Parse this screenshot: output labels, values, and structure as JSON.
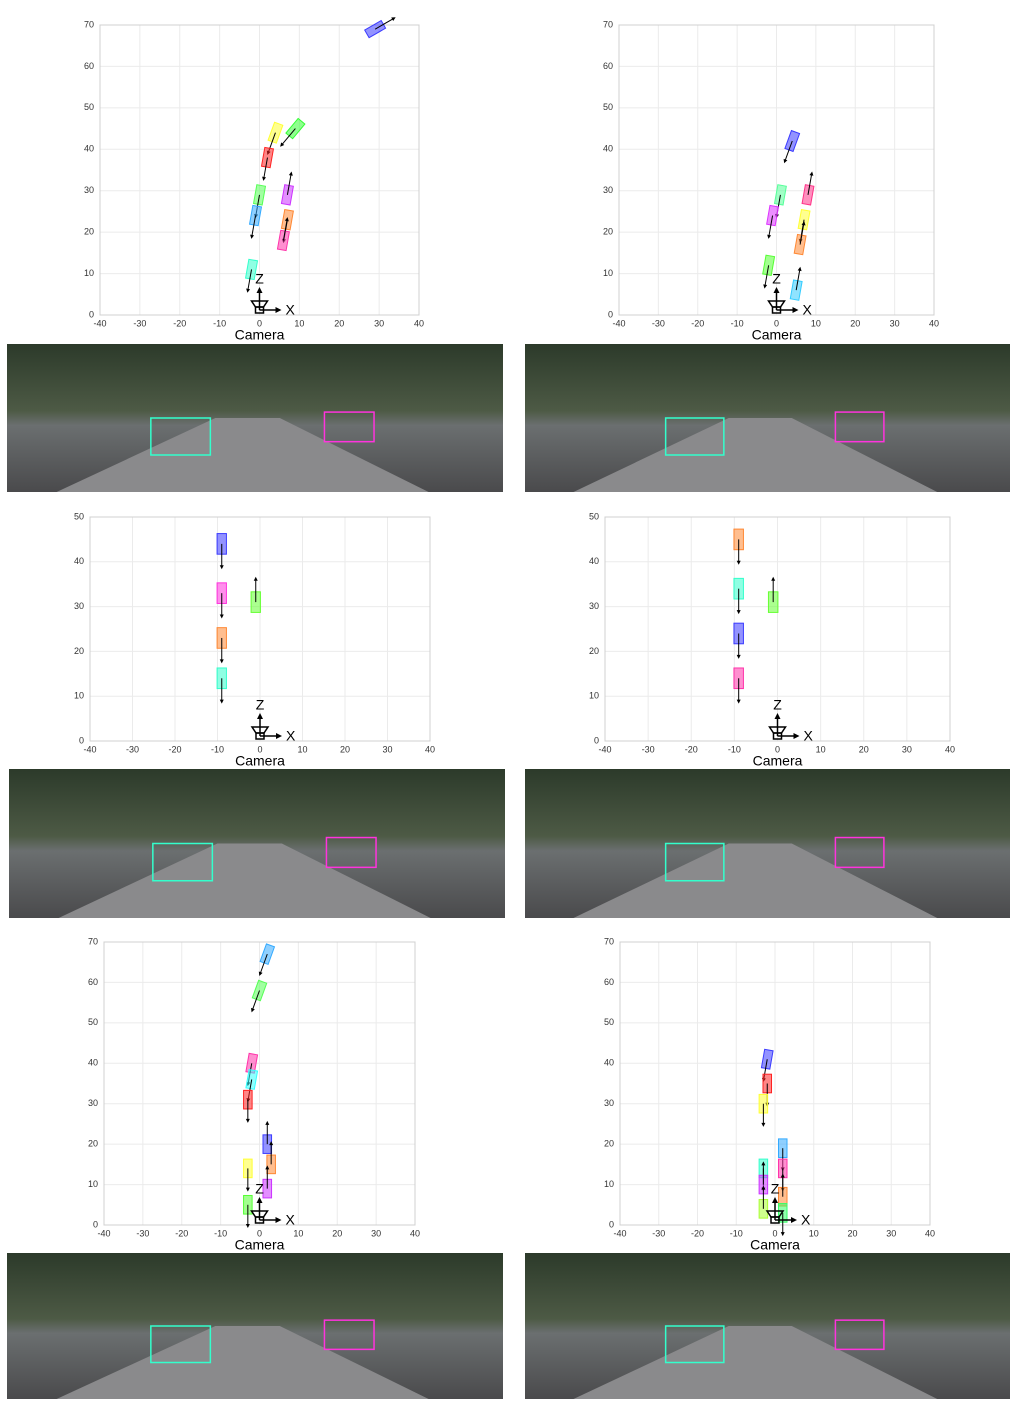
{
  "chart_data": [
    {
      "type": "bev",
      "xlim": [
        -40,
        40
      ],
      "ylim": [
        0,
        70
      ],
      "xticks": [
        -40,
        -30,
        -20,
        -10,
        0,
        10,
        20,
        30,
        40
      ],
      "yticks": [
        0,
        10,
        20,
        30,
        40,
        50,
        60,
        70
      ],
      "grid": true,
      "z_label": "Z",
      "x_label": "X",
      "camera_label": "Camera",
      "x": [
        29,
        4,
        9,
        2,
        0,
        -1,
        7,
        7,
        6,
        -2
      ],
      "values": [
        69,
        44,
        45,
        38,
        29,
        24,
        29,
        23,
        18,
        11
      ],
      "headings": [
        60,
        200,
        220,
        190,
        190,
        190,
        10,
        190,
        10,
        190
      ],
      "colors": [
        "#3b3bff",
        "#ffff33",
        "#33ff33",
        "#ff2222",
        "#55ff55",
        "#33aaff",
        "#cc33ff",
        "#ff8833",
        "#ff33aa",
        "#33ffcc"
      ]
    },
    {
      "type": "bev",
      "xlim": [
        -40,
        40
      ],
      "ylim": [
        0,
        70
      ],
      "xticks": [
        -40,
        -30,
        -20,
        -10,
        0,
        10,
        20,
        30,
        40
      ],
      "yticks": [
        0,
        10,
        20,
        30,
        40,
        50,
        60,
        70
      ],
      "grid": true,
      "z_label": "Z",
      "x_label": "X",
      "camera_label": "Camera",
      "x": [
        4,
        1,
        -1,
        8,
        7,
        6,
        -2,
        5
      ],
      "values": [
        42,
        29,
        24,
        29,
        23,
        17,
        12,
        6
      ],
      "headings": [
        200,
        190,
        190,
        10,
        190,
        10,
        190,
        10
      ],
      "colors": [
        "#3b3bff",
        "#55ff99",
        "#dd33ff",
        "#ff3388",
        "#ffff33",
        "#ff8833",
        "#55ff33",
        "#33ccff"
      ]
    },
    {
      "type": "bev",
      "xlim": [
        -40,
        40
      ],
      "ylim": [
        0,
        50
      ],
      "xticks": [
        -40,
        -30,
        -20,
        -10,
        0,
        10,
        20,
        30,
        40
      ],
      "yticks": [
        0,
        10,
        20,
        30,
        40,
        50
      ],
      "grid": true,
      "z_label": "Z",
      "x_label": "X",
      "camera_label": "Camera",
      "x": [
        -9,
        -9,
        -9,
        -9,
        -1
      ],
      "values": [
        44,
        33,
        23,
        14,
        31
      ],
      "headings": [
        180,
        180,
        180,
        180,
        0
      ],
      "colors": [
        "#3b3bff",
        "#ff33dd",
        "#ff8833",
        "#33ffcc",
        "#66ff33"
      ]
    },
    {
      "type": "bev",
      "xlim": [
        -40,
        40
      ],
      "ylim": [
        0,
        50
      ],
      "xticks": [
        -40,
        -30,
        -20,
        -10,
        0,
        10,
        20,
        30,
        40
      ],
      "yticks": [
        0,
        10,
        20,
        30,
        40,
        50
      ],
      "grid": true,
      "z_label": "Z",
      "x_label": "X",
      "camera_label": "Camera",
      "x": [
        -9,
        -9,
        -9,
        -9,
        -1
      ],
      "values": [
        45,
        34,
        24,
        14,
        31
      ],
      "headings": [
        180,
        180,
        180,
        180,
        0
      ],
      "colors": [
        "#ff8833",
        "#33ffcc",
        "#3b3bff",
        "#ff33aa",
        "#66ff33"
      ]
    },
    {
      "type": "bev",
      "xlim": [
        -40,
        40
      ],
      "ylim": [
        0,
        70
      ],
      "xticks": [
        -40,
        -30,
        -20,
        -10,
        0,
        10,
        20,
        30,
        40
      ],
      "yticks": [
        0,
        10,
        20,
        30,
        40,
        50,
        60,
        70
      ],
      "grid": true,
      "z_label": "Z",
      "x_label": "X",
      "camera_label": "Camera",
      "x": [
        2,
        0,
        -2,
        -2,
        -3,
        2,
        3,
        2,
        -3,
        -3
      ],
      "values": [
        67,
        58,
        40,
        36,
        31,
        20,
        15,
        9,
        14,
        5
      ],
      "headings": [
        200,
        200,
        190,
        190,
        180,
        0,
        0,
        0,
        180,
        180
      ],
      "colors": [
        "#33aaff",
        "#55ff55",
        "#ff33aa",
        "#33ffff",
        "#ff2222",
        "#3b3bff",
        "#ff8833",
        "#cc33ff",
        "#ffff33",
        "#55ff33"
      ]
    },
    {
      "type": "bev",
      "xlim": [
        -40,
        40
      ],
      "ylim": [
        0,
        70
      ],
      "xticks": [
        -40,
        -30,
        -20,
        -10,
        0,
        10,
        20,
        30,
        40
      ],
      "yticks": [
        0,
        10,
        20,
        30,
        40,
        50,
        60,
        70
      ],
      "grid": true,
      "z_label": "Z",
      "x_label": "X",
      "camera_label": "Camera",
      "x": [
        -2,
        -2,
        -3,
        2,
        2,
        -3,
        -3,
        2,
        -3,
        2
      ],
      "values": [
        41,
        35,
        30,
        19,
        14,
        14,
        10,
        7,
        4,
        3
      ],
      "headings": [
        190,
        180,
        180,
        180,
        180,
        180,
        0,
        0,
        0,
        180
      ],
      "colors": [
        "#3b3bff",
        "#ff2222",
        "#ffff33",
        "#33aaff",
        "#ff33aa",
        "#33ffcc",
        "#cc33ff",
        "#ff8833",
        "#aaff33",
        "#33ff66"
      ]
    }
  ]
}
